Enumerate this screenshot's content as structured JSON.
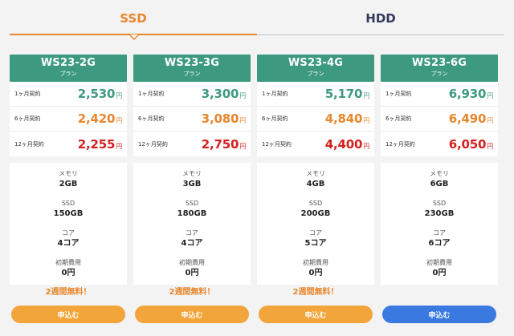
{
  "tabs": [
    {
      "label": "SSD",
      "active": true
    },
    {
      "label": "HDD",
      "active": false
    }
  ],
  "colors": {
    "accent": "#e8862c",
    "header_green": "#3d9a80",
    "price_green": "#3d9a80",
    "price_orange": "#e8862c",
    "price_red": "#d4201f",
    "button_orange": "#f2a53a",
    "button_blue": "#3a7ae0"
  },
  "yen": "円",
  "plans": [
    {
      "name": "WS23-2G",
      "sub": "プラン",
      "prices": [
        {
          "label": "1ヶ月契約",
          "value": "2,530"
        },
        {
          "label": "6ヶ月契約",
          "value": "2,420"
        },
        {
          "label": "12ヶ月契約",
          "value": "2,255"
        }
      ],
      "specs": [
        {
          "label": "メモリ",
          "value": "2GB"
        },
        {
          "label": "SSD",
          "value": "150GB"
        },
        {
          "label": "コア",
          "value": "4コア"
        },
        {
          "label": "初期費用",
          "value": "0円"
        }
      ],
      "promo": "2週間無料！",
      "button": "申込む"
    },
    {
      "name": "WS23-3G",
      "sub": "プラン",
      "prices": [
        {
          "label": "1ヶ月契約",
          "value": "3,300"
        },
        {
          "label": "6ヶ月契約",
          "value": "3,080"
        },
        {
          "label": "12ヶ月契約",
          "value": "2,750"
        }
      ],
      "specs": [
        {
          "label": "メモリ",
          "value": "3GB"
        },
        {
          "label": "SSD",
          "value": "180GB"
        },
        {
          "label": "コア",
          "value": "4コア"
        },
        {
          "label": "初期費用",
          "value": "0円"
        }
      ],
      "promo": "2週間無料！",
      "button": "申込む"
    },
    {
      "name": "WS23-4G",
      "sub": "プラン",
      "prices": [
        {
          "label": "1ヶ月契約",
          "value": "5,170"
        },
        {
          "label": "6ヶ月契約",
          "value": "4,840"
        },
        {
          "label": "12ヶ月契約",
          "value": "4,400"
        }
      ],
      "specs": [
        {
          "label": "メモリ",
          "value": "4GB"
        },
        {
          "label": "SSD",
          "value": "200GB"
        },
        {
          "label": "コア",
          "value": "5コア"
        },
        {
          "label": "初期費用",
          "value": "0円"
        }
      ],
      "promo": "2週間無料！",
      "button": "申込む"
    },
    {
      "name": "WS23-6G",
      "sub": "プラン",
      "prices": [
        {
          "label": "1ヶ月契約",
          "value": "6,930"
        },
        {
          "label": "6ヶ月契約",
          "value": "6,490"
        },
        {
          "label": "12ヶ月契約",
          "value": "6,050"
        }
      ],
      "specs": [
        {
          "label": "メモリ",
          "value": "6GB"
        },
        {
          "label": "SSD",
          "value": "230GB"
        },
        {
          "label": "コア",
          "value": "6コア"
        },
        {
          "label": "初期費用",
          "value": "0円"
        }
      ],
      "promo": "",
      "button": "申込む"
    }
  ]
}
